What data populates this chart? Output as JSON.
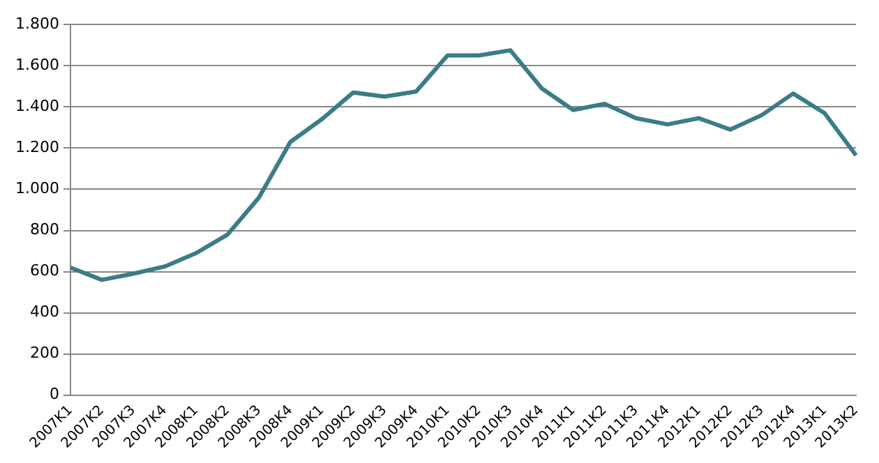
{
  "chart_data": {
    "type": "line",
    "categories": [
      "2007K1",
      "2007K2",
      "2007K3",
      "2007K4",
      "2008K1",
      "2008K2",
      "2008K3",
      "2008K4",
      "2009K1",
      "2009K2",
      "2009K3",
      "2009K4",
      "2010K1",
      "2010K2",
      "2010K3",
      "2010K4",
      "2011K1",
      "2011K2",
      "2011K3",
      "2011K4",
      "2012K1",
      "2012K2",
      "2012K3",
      "2012K4",
      "2013K1",
      "2013K2"
    ],
    "series": [
      {
        "color": "#3b7c88",
        "values": [
          620,
          560,
          590,
          625,
          690,
          780,
          960,
          1230,
          1340,
          1470,
          1450,
          1475,
          1650,
          1650,
          1675,
          1490,
          1385,
          1415,
          1345,
          1315,
          1345,
          1290,
          1360,
          1465,
          1370,
          1165
        ]
      }
    ],
    "ylim": [
      0,
      1800
    ],
    "yticks": [
      0,
      200,
      400,
      600,
      800,
      {
        "value": 1000,
        "label": "1.000"
      },
      {
        "value": 1200,
        "label": "1.200"
      },
      {
        "value": 1400,
        "label": "1.400"
      },
      {
        "value": 1600,
        "label": "1.600"
      },
      {
        "value": 1800,
        "label": "1.800"
      }
    ],
    "grid": "y",
    "legend": false,
    "marker": "none",
    "line_style": "solid"
  }
}
